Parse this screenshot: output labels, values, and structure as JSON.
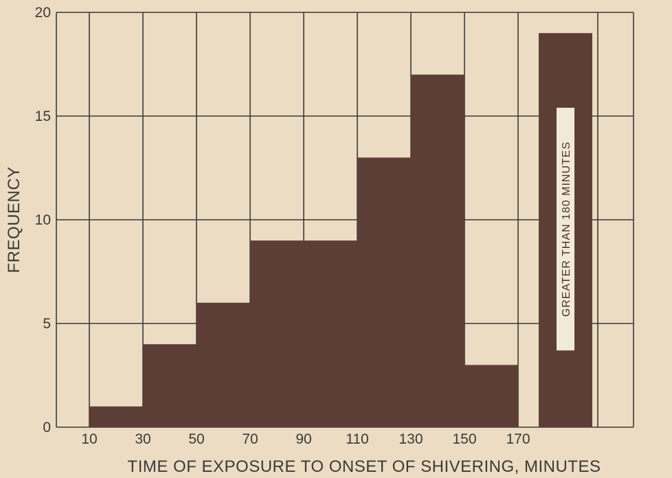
{
  "chart_data": {
    "type": "bar",
    "title": "",
    "xlabel": "TIME OF EXPOSURE TO ONSET OF SHIVERING, MINUTES",
    "ylabel": "FREQUENCY",
    "ylim": [
      0,
      20
    ],
    "yticks": [
      "0",
      "5",
      "10",
      "15",
      "20"
    ],
    "xticks": [
      "10",
      "30",
      "50",
      "70",
      "90",
      "110",
      "130",
      "150",
      "170"
    ],
    "grid": true,
    "bins": [
      {
        "start": 10,
        "end": 30,
        "value": 1
      },
      {
        "start": 30,
        "end": 50,
        "value": 4
      },
      {
        "start": 50,
        "end": 70,
        "value": 6
      },
      {
        "start": 70,
        "end": 90,
        "value": 9
      },
      {
        "start": 90,
        "end": 110,
        "value": 9
      },
      {
        "start": 110,
        "end": 130,
        "value": 13
      },
      {
        "start": 130,
        "end": 150,
        "value": 17
      },
      {
        "start": 150,
        "end": 170,
        "value": 3
      }
    ],
    "extra_bar": {
      "label": "GREATER THAN 180 MINUTES",
      "value": 19
    },
    "colors": {
      "bar": "#5d3e37",
      "grid": "#3a3a38",
      "background": "#ecdcc3"
    }
  }
}
